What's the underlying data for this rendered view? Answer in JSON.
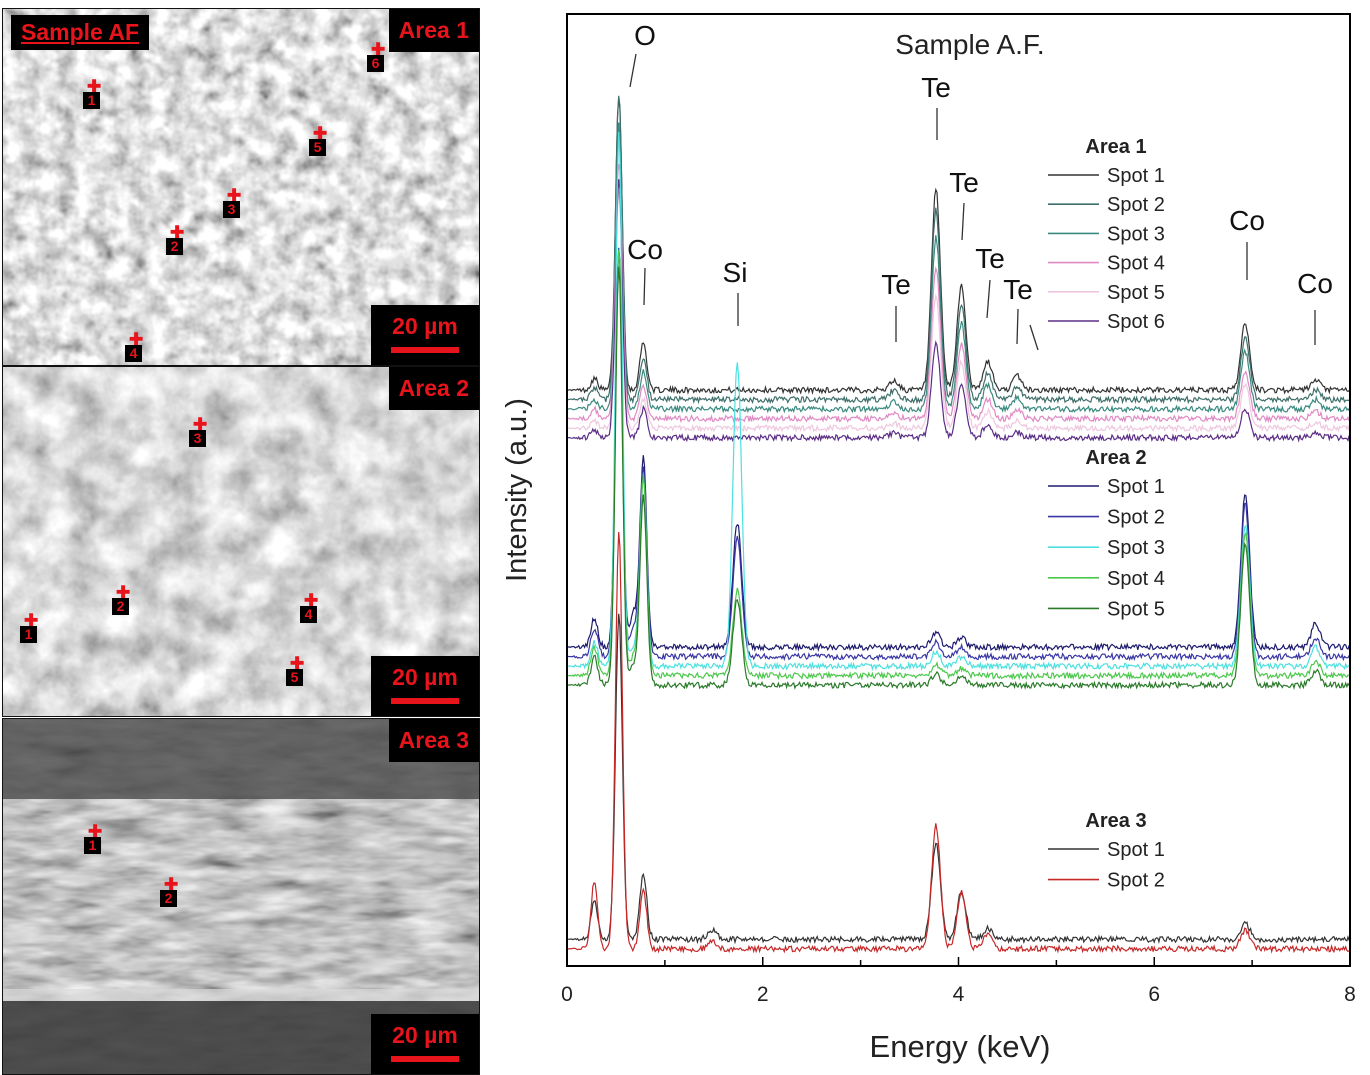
{
  "sem_panels": {
    "panel1": {
      "sample_label": "Sample AF",
      "area_label": "Area 1",
      "scale_bar": "20 µm",
      "spots": [
        "1",
        "2",
        "3",
        "4",
        "5",
        "6"
      ]
    },
    "panel2": {
      "area_label": "Area 2",
      "scale_bar": "20 µm",
      "spots": [
        "1",
        "2",
        "3",
        "4",
        "5"
      ]
    },
    "panel3": {
      "area_label": "Area 3",
      "scale_bar": "20 µm",
      "spots": [
        "1",
        "2"
      ]
    }
  },
  "chart_data": {
    "type": "line",
    "title": "Sample A.F.",
    "xlabel": "Energy (keV)",
    "ylabel": "Intensity (a.u.)",
    "xlim": [
      0,
      8
    ],
    "x_ticks": [
      "0",
      "2",
      "4",
      "6",
      "8"
    ],
    "y_ticks": "none",
    "grid": false,
    "peak_labels": [
      {
        "label": "O",
        "energy": 0.53
      },
      {
        "label": "Co",
        "energy": 0.78
      },
      {
        "label": "Si",
        "energy": 1.74
      },
      {
        "label": "Te",
        "energy": 3.34
      },
      {
        "label": "Te",
        "energy": 3.77
      },
      {
        "label": "Te",
        "energy": 4.03
      },
      {
        "label": "Te",
        "energy": 4.3
      },
      {
        "label": "Te",
        "energy": 4.6
      },
      {
        "label": "Co",
        "energy": 6.93
      },
      {
        "label": "Co",
        "energy": 7.65
      }
    ],
    "legends": [
      {
        "group": "Area 1",
        "entries": [
          {
            "name": "Spot 1",
            "color": "#333333"
          },
          {
            "name": "Spot 2",
            "color": "#3f6f6a"
          },
          {
            "name": "Spot 3",
            "color": "#3a8a80"
          },
          {
            "name": "Spot 4",
            "color": "#e08ac4"
          },
          {
            "name": "Spot 5",
            "color": "#efc8df"
          },
          {
            "name": "Spot 6",
            "color": "#5b2e86"
          }
        ]
      },
      {
        "group": "Area 2",
        "entries": [
          {
            "name": "Spot 1",
            "color": "#1e1b6e"
          },
          {
            "name": "Spot 2",
            "color": "#3a36a5"
          },
          {
            "name": "Spot 3",
            "color": "#4de0e0"
          },
          {
            "name": "Spot 4",
            "color": "#4cc84c"
          },
          {
            "name": "Spot 5",
            "color": "#2a7a2a"
          }
        ]
      },
      {
        "group": "Area 3",
        "entries": [
          {
            "name": "Spot 1",
            "color": "#333333"
          },
          {
            "name": "Spot 2",
            "color": "#c62828"
          }
        ]
      }
    ],
    "series": [
      {
        "group": "Area 1",
        "name": "Spot 1",
        "baseline": 0.605,
        "peaks": [
          [
            0.28,
            0.012
          ],
          [
            0.53,
            0.31
          ],
          [
            0.78,
            0.05
          ],
          [
            3.34,
            0.01
          ],
          [
            3.77,
            0.21
          ],
          [
            4.03,
            0.11
          ],
          [
            4.3,
            0.03
          ],
          [
            4.6,
            0.015
          ],
          [
            6.93,
            0.07
          ],
          [
            7.65,
            0.01
          ]
        ]
      },
      {
        "group": "Area 1",
        "name": "Spot 2",
        "baseline": 0.595,
        "peaks": [
          [
            0.28,
            0.012
          ],
          [
            0.53,
            0.32
          ],
          [
            0.78,
            0.045
          ],
          [
            3.34,
            0.01
          ],
          [
            3.77,
            0.2
          ],
          [
            4.03,
            0.1
          ],
          [
            4.3,
            0.028
          ],
          [
            4.6,
            0.013
          ],
          [
            6.93,
            0.065
          ],
          [
            7.65,
            0.01
          ]
        ]
      },
      {
        "group": "Area 1",
        "name": "Spot 3",
        "baseline": 0.585,
        "peaks": [
          [
            0.28,
            0.01
          ],
          [
            0.53,
            0.3
          ],
          [
            0.78,
            0.04
          ],
          [
            3.34,
            0.008
          ],
          [
            3.77,
            0.18
          ],
          [
            4.03,
            0.09
          ],
          [
            4.3,
            0.025
          ],
          [
            4.6,
            0.012
          ],
          [
            6.93,
            0.06
          ],
          [
            7.65,
            0.01
          ]
        ]
      },
      {
        "group": "Area 1",
        "name": "Spot 4",
        "baseline": 0.575,
        "peaks": [
          [
            0.28,
            0.01
          ],
          [
            0.53,
            0.27
          ],
          [
            0.78,
            0.035
          ],
          [
            3.34,
            0.006
          ],
          [
            3.77,
            0.16
          ],
          [
            4.03,
            0.08
          ],
          [
            4.3,
            0.02
          ],
          [
            4.6,
            0.01
          ],
          [
            6.93,
            0.05
          ],
          [
            7.65,
            0.008
          ]
        ]
      },
      {
        "group": "Area 1",
        "name": "Spot 5",
        "baseline": 0.565,
        "peaks": [
          [
            0.28,
            0.008
          ],
          [
            0.53,
            0.25
          ],
          [
            0.78,
            0.03
          ],
          [
            3.34,
            0.005
          ],
          [
            3.77,
            0.14
          ],
          [
            4.03,
            0.07
          ],
          [
            4.3,
            0.018
          ],
          [
            4.6,
            0.008
          ],
          [
            6.93,
            0.045
          ],
          [
            7.65,
            0.006
          ]
        ]
      },
      {
        "group": "Area 1",
        "name": "Spot 6",
        "baseline": 0.555,
        "peaks": [
          [
            0.28,
            0.008
          ],
          [
            0.53,
            0.27
          ],
          [
            0.78,
            0.03
          ],
          [
            3.34,
            0.005
          ],
          [
            3.77,
            0.1
          ],
          [
            4.03,
            0.055
          ],
          [
            4.3,
            0.015
          ],
          [
            4.6,
            0.006
          ],
          [
            6.93,
            0.03
          ],
          [
            7.65,
            0.004
          ]
        ]
      },
      {
        "group": "Area 2",
        "name": "Spot 1",
        "baseline": 0.335,
        "peaks": [
          [
            0.28,
            0.03
          ],
          [
            0.53,
            0.42
          ],
          [
            0.68,
            0.035
          ],
          [
            0.78,
            0.2
          ],
          [
            1.74,
            0.13
          ],
          [
            3.77,
            0.015
          ],
          [
            4.03,
            0.01
          ],
          [
            6.93,
            0.16
          ],
          [
            7.65,
            0.025
          ]
        ]
      },
      {
        "group": "Area 2",
        "name": "Spot 2",
        "baseline": 0.325,
        "peaks": [
          [
            0.28,
            0.03
          ],
          [
            0.53,
            0.43
          ],
          [
            0.68,
            0.03
          ],
          [
            0.78,
            0.2
          ],
          [
            1.74,
            0.125
          ],
          [
            3.77,
            0.015
          ],
          [
            4.03,
            0.01
          ],
          [
            6.93,
            0.16
          ],
          [
            7.65,
            0.02
          ]
        ]
      },
      {
        "group": "Area 2",
        "name": "Spot 3",
        "baseline": 0.315,
        "peaks": [
          [
            0.28,
            0.025
          ],
          [
            0.53,
            0.56
          ],
          [
            0.68,
            0.02
          ],
          [
            0.78,
            0.2
          ],
          [
            1.74,
            0.32
          ],
          [
            3.77,
            0.015
          ],
          [
            4.03,
            0.01
          ],
          [
            6.93,
            0.15
          ],
          [
            7.65,
            0.02
          ]
        ]
      },
      {
        "group": "Area 2",
        "name": "Spot 4",
        "baseline": 0.305,
        "peaks": [
          [
            0.28,
            0.03
          ],
          [
            0.53,
            0.45
          ],
          [
            0.68,
            0.02
          ],
          [
            0.78,
            0.21
          ],
          [
            1.74,
            0.09
          ],
          [
            3.77,
            0.012
          ],
          [
            4.03,
            0.008
          ],
          [
            6.93,
            0.15
          ],
          [
            7.65,
            0.015
          ]
        ]
      },
      {
        "group": "Area 2",
        "name": "Spot 5",
        "baseline": 0.295,
        "peaks": [
          [
            0.28,
            0.03
          ],
          [
            0.53,
            0.44
          ],
          [
            0.68,
            0.02
          ],
          [
            0.78,
            0.2
          ],
          [
            1.74,
            0.09
          ],
          [
            3.77,
            0.012
          ],
          [
            4.03,
            0.008
          ],
          [
            6.93,
            0.15
          ],
          [
            7.65,
            0.015
          ]
        ]
      },
      {
        "group": "Area 3",
        "name": "Spot 1",
        "baseline": 0.028,
        "peaks": [
          [
            0.28,
            0.04
          ],
          [
            0.53,
            0.34
          ],
          [
            0.78,
            0.07
          ],
          [
            1.48,
            0.01
          ],
          [
            3.77,
            0.1
          ],
          [
            4.03,
            0.05
          ],
          [
            4.3,
            0.012
          ],
          [
            6.93,
            0.018
          ]
        ]
      },
      {
        "group": "Area 3",
        "name": "Spot 2",
        "baseline": 0.018,
        "peaks": [
          [
            0.28,
            0.07
          ],
          [
            0.53,
            0.44
          ],
          [
            0.78,
            0.06
          ],
          [
            1.48,
            0.008
          ],
          [
            3.77,
            0.13
          ],
          [
            4.03,
            0.06
          ],
          [
            4.3,
            0.015
          ],
          [
            6.93,
            0.02
          ]
        ]
      }
    ]
  }
}
